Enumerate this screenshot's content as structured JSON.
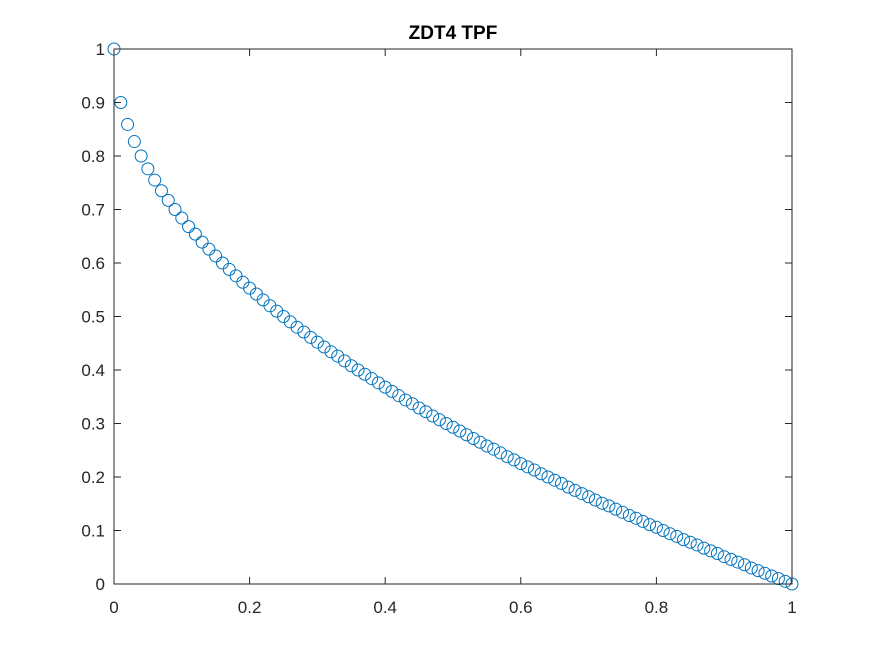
{
  "chart_data": {
    "type": "scatter",
    "title": "ZDT4 TPF",
    "xlabel": "",
    "ylabel": "",
    "xlim": [
      0,
      1
    ],
    "ylim": [
      0,
      1
    ],
    "x_ticks": [
      0,
      0.2,
      0.4,
      0.6,
      0.8,
      1
    ],
    "x_tick_labels": [
      "0",
      "0.2",
      "0.4",
      "0.6",
      "0.8",
      "1"
    ],
    "y_ticks": [
      0,
      0.1,
      0.2,
      0.3,
      0.4,
      0.5,
      0.6,
      0.7,
      0.8,
      0.9,
      1
    ],
    "y_tick_labels": [
      "0",
      "0.1",
      "0.2",
      "0.3",
      "0.4",
      "0.5",
      "0.6",
      "0.7",
      "0.8",
      "0.9",
      "1"
    ],
    "grid": false,
    "box": true,
    "marker": "circle-open",
    "series": [
      {
        "color": "#0072BD",
        "x": [
          0,
          0.01,
          0.02,
          0.03,
          0.04,
          0.05,
          0.06,
          0.07,
          0.08,
          0.09,
          0.1,
          0.11,
          0.12,
          0.13,
          0.14,
          0.15,
          0.16,
          0.17,
          0.18,
          0.19,
          0.2,
          0.21,
          0.22,
          0.23,
          0.24,
          0.25,
          0.26,
          0.27,
          0.28,
          0.29,
          0.3,
          0.31,
          0.32,
          0.33,
          0.34,
          0.35,
          0.36,
          0.37,
          0.38,
          0.39,
          0.4,
          0.41,
          0.42,
          0.43,
          0.44,
          0.45,
          0.46,
          0.47,
          0.48,
          0.49,
          0.5,
          0.51,
          0.52,
          0.53,
          0.54,
          0.55,
          0.56,
          0.57,
          0.58,
          0.59,
          0.6,
          0.61,
          0.62,
          0.63,
          0.64,
          0.65,
          0.66,
          0.67,
          0.68,
          0.69,
          0.7,
          0.71,
          0.72,
          0.73,
          0.74,
          0.75,
          0.76,
          0.77,
          0.78,
          0.79,
          0.8,
          0.81,
          0.82,
          0.83,
          0.84,
          0.85,
          0.86,
          0.87,
          0.88,
          0.89,
          0.9,
          0.91,
          0.92,
          0.93,
          0.94,
          0.95,
          0.96,
          0.97,
          0.98,
          0.99,
          1
        ],
        "y": [
          1,
          0.9,
          0.859,
          0.827,
          0.8,
          0.776,
          0.755,
          0.735,
          0.717,
          0.7,
          0.684,
          0.668,
          0.654,
          0.639,
          0.626,
          0.613,
          0.6,
          0.588,
          0.576,
          0.564,
          0.553,
          0.542,
          0.531,
          0.52,
          0.51,
          0.5,
          0.49,
          0.48,
          0.471,
          0.461,
          0.452,
          0.443,
          0.434,
          0.426,
          0.417,
          0.408,
          0.4,
          0.392,
          0.384,
          0.376,
          0.368,
          0.36,
          0.352,
          0.344,
          0.337,
          0.329,
          0.322,
          0.314,
          0.307,
          0.3,
          0.293,
          0.286,
          0.279,
          0.272,
          0.265,
          0.258,
          0.252,
          0.245,
          0.238,
          0.232,
          0.225,
          0.219,
          0.213,
          0.206,
          0.2,
          0.194,
          0.188,
          0.181,
          0.175,
          0.169,
          0.163,
          0.157,
          0.151,
          0.146,
          0.14,
          0.134,
          0.128,
          0.123,
          0.117,
          0.111,
          0.106,
          0.1,
          0.094,
          0.089,
          0.083,
          0.078,
          0.073,
          0.067,
          0.062,
          0.057,
          0.051,
          0.046,
          0.041,
          0.036,
          0.03,
          0.025,
          0.02,
          0.015,
          0.01,
          0.005,
          0
        ]
      }
    ]
  }
}
